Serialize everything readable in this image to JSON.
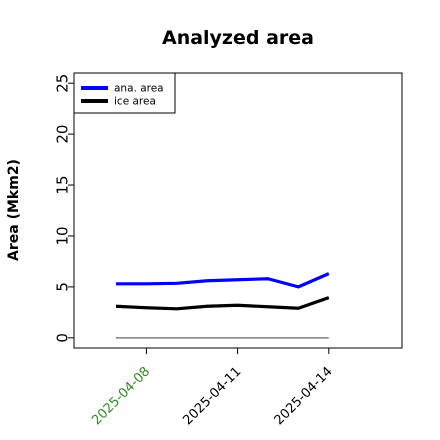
{
  "chart_data": {
    "type": "line",
    "title": "Analyzed area",
    "xlabel": "",
    "ylabel": "Area (Mkm2)",
    "x": [
      "2025-04-07",
      "2025-04-08",
      "2025-04-09",
      "2025-04-10",
      "2025-04-11",
      "2025-04-12",
      "2025-04-13",
      "2025-04-14"
    ],
    "xticks": [
      "2025-04-08",
      "2025-04-11",
      "2025-04-14"
    ],
    "xtick_colors": [
      "#2e8b22",
      "#000000",
      "#000000"
    ],
    "ylim": [
      -1,
      26
    ],
    "yticks": [
      0,
      5,
      10,
      15,
      20,
      25
    ],
    "grid": false,
    "legend_position": "top-left",
    "series": [
      {
        "name": "ana. area",
        "color": "#0000ff",
        "values": [
          5.3,
          5.3,
          5.35,
          5.6,
          5.7,
          5.8,
          5.0,
          6.3
        ]
      },
      {
        "name": "ice area",
        "color": "#000000",
        "values": [
          3.1,
          2.95,
          2.85,
          3.1,
          3.2,
          3.05,
          2.9,
          3.95
        ]
      }
    ],
    "reference_line": {
      "color": "#808080",
      "value": 0.0
    }
  }
}
